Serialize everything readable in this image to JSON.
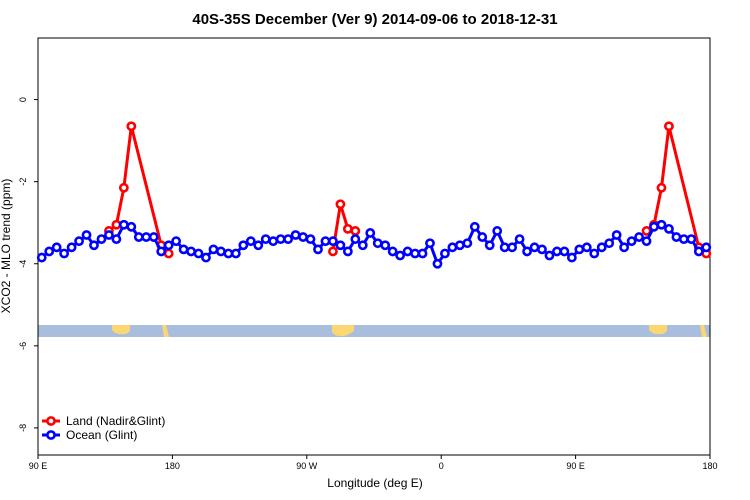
{
  "chart_data": {
    "type": "line",
    "title": "40S-35S December (Ver 9)   2014-09-06 to 2018-12-31",
    "x_label": "Longitude (deg E)",
    "y_label": "XCO2 - MLO trend (ppm)",
    "xlim": [
      90,
      540
    ],
    "ylim": [
      -8.66,
      1.5
    ],
    "xticks": [
      {
        "value": 90,
        "label": "90 E"
      },
      {
        "value": 180,
        "label": "180"
      },
      {
        "value": 270,
        "label": "90 W"
      },
      {
        "value": 360,
        "label": "0"
      },
      {
        "value": 450,
        "label": "90 E"
      },
      {
        "value": 540,
        "label": "180"
      }
    ],
    "yticks": [
      0,
      -2,
      -4,
      -6,
      -8
    ],
    "legend": "bottom-left",
    "series": [
      {
        "name": "Land (Nadir&Glint)",
        "color": "#ff0000",
        "x": [
          137.5,
          142.5,
          147.5,
          152.5,
          172.5,
          177.5,
          282.5,
          287.5,
          292.5,
          297.5,
          302.5,
          400,
          497.5,
          502.5,
          507.5,
          512.5,
          532.5,
          537.5
        ],
        "values": [
          -3.2,
          -3.05,
          -2.15,
          -0.65,
          -3.55,
          -3.75,
          null,
          -3.7,
          -2.55,
          -3.15,
          -3.2,
          null,
          -3.2,
          -3.05,
          -2.15,
          -0.65,
          -3.6,
          -3.75
        ]
      },
      {
        "name": "Ocean (Glint)",
        "color": "#0000ff",
        "x": [
          92.5,
          97.5,
          102.5,
          107.5,
          112.5,
          117.5,
          122.5,
          127.5,
          132.5,
          137.5,
          142.5,
          147.5,
          152.5,
          157.5,
          162.5,
          167.5,
          172.5,
          177.5,
          182.5,
          187.5,
          192.5,
          197.5,
          202.5,
          207.5,
          212.5,
          217.5,
          222.5,
          227.5,
          232.5,
          237.5,
          242.5,
          247.5,
          252.5,
          257.5,
          262.5,
          267.5,
          272.5,
          277.5,
          282.5,
          287.5,
          292.5,
          297.5,
          302.5,
          307.5,
          312.5,
          317.5,
          322.5,
          327.5,
          332.5,
          337.5,
          342.5,
          347.5,
          352.5,
          357.5,
          362.5,
          367.5,
          372.5,
          377.5,
          382.5,
          387.5,
          392.5,
          397.5,
          402.5,
          407.5,
          412.5,
          417.5,
          422.5,
          427.5,
          432.5,
          437.5,
          442.5,
          447.5,
          452.5,
          457.5,
          462.5,
          467.5,
          472.5,
          477.5,
          482.5,
          487.5,
          492.5,
          497.5,
          502.5,
          507.5,
          512.5,
          517.5,
          522.5,
          527.5,
          532.5,
          537.5
        ],
        "values": [
          -3.85,
          -3.7,
          -3.6,
          -3.75,
          -3.6,
          -3.45,
          -3.3,
          -3.55,
          -3.4,
          -3.3,
          -3.4,
          -3.05,
          -3.1,
          -3.35,
          -3.35,
          -3.35,
          -3.7,
          -3.55,
          -3.45,
          -3.65,
          -3.7,
          -3.75,
          -3.85,
          -3.65,
          -3.7,
          -3.75,
          -3.75,
          -3.55,
          -3.45,
          -3.55,
          -3.4,
          -3.45,
          -3.4,
          -3.4,
          -3.3,
          -3.35,
          -3.4,
          -3.65,
          -3.45,
          -3.45,
          -3.55,
          -3.7,
          -3.4,
          -3.55,
          -3.25,
          -3.5,
          -3.55,
          -3.7,
          -3.8,
          -3.7,
          -3.75,
          -3.75,
          -3.5,
          -4.0,
          -3.75,
          -3.6,
          -3.55,
          -3.5,
          -3.1,
          -3.35,
          -3.55,
          -3.2,
          -3.6,
          -3.6,
          -3.4,
          -3.7,
          -3.6,
          -3.65,
          -3.8,
          -3.7,
          -3.7,
          -3.85,
          -3.65,
          -3.6,
          -3.75,
          -3.6,
          -3.5,
          -3.3,
          -3.6,
          -3.45,
          -3.35,
          -3.45,
          -3.1,
          -3.05,
          -3.15,
          -3.35,
          -3.4,
          -3.4,
          -3.7,
          -3.6
        ]
      }
    ]
  }
}
